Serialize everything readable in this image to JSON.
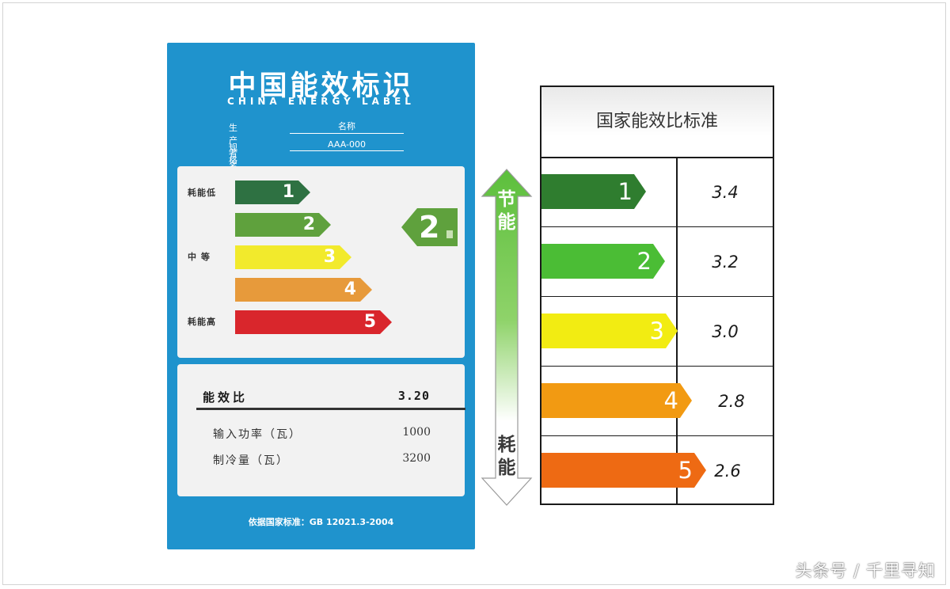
{
  "label": {
    "title": "中国能效标识",
    "subtitle": "CHINA ENERGY LABEL",
    "info": [
      {
        "key": "生产者名称",
        "value": "名称"
      },
      {
        "key": "规格型号",
        "value": "AAA-000"
      }
    ],
    "grade_side_labels": {
      "low": "耗能低",
      "mid": "中 等",
      "high": "耗能高"
    },
    "grades": [
      {
        "num": "1",
        "color": "#2e7142"
      },
      {
        "num": "2",
        "color": "#5fa13d"
      },
      {
        "num": "3",
        "color": "#f2ea2c"
      },
      {
        "num": "4",
        "color": "#e79a3b"
      },
      {
        "num": "5",
        "color": "#d9262c"
      }
    ],
    "current_grade": "2",
    "spec": {
      "head_key": "能效比",
      "head_value": "3.20",
      "rows": [
        {
          "key": "输入功率（瓦）",
          "value": "1000"
        },
        {
          "key": "制冷量（瓦）",
          "value": "3200"
        }
      ]
    },
    "standard": "依据国家标准：GB 12021.3-2004"
  },
  "scale_arrow": {
    "top_label": [
      "节",
      "能"
    ],
    "bottom_label": [
      "耗",
      "能"
    ],
    "color": "#5cbf3c"
  },
  "standard_table": {
    "title": "国家能效比标准",
    "rows": [
      {
        "grade": "1",
        "value": "3.4",
        "color": "#2f7d2f"
      },
      {
        "grade": "2",
        "value": "3.2",
        "color": "#4bbd35"
      },
      {
        "grade": "3",
        "value": "3.0",
        "color": "#f2ec12"
      },
      {
        "grade": "4",
        "value": "2.8",
        "color": "#f29a12"
      },
      {
        "grade": "5",
        "value": "2.6",
        "color": "#ee6a13"
      }
    ]
  },
  "watermark": "头条号 / 千里寻知"
}
